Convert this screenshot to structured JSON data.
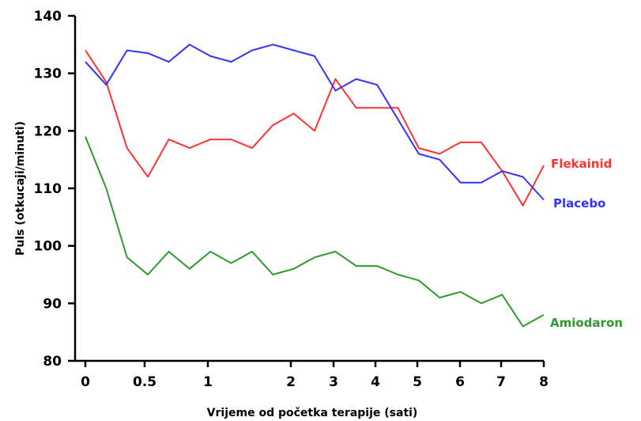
{
  "chart_data": {
    "type": "line",
    "xlabel": "Vrijeme od početka terapije (sati)",
    "ylabel": "Puls (otkucaji/minuti)",
    "ylim": [
      80,
      140
    ],
    "yticks": [
      "80",
      "90",
      "100",
      "110",
      "120",
      "130",
      "140"
    ],
    "xticks": [
      "0",
      "0.5",
      "1",
      "2",
      "3",
      "4",
      "5",
      "6",
      "7",
      "8"
    ],
    "grid": false,
    "legend": "inline labels at right end of each series",
    "series": [
      {
        "name": "Flekainid",
        "color": "#ff3333",
        "values": [
          134,
          128.5,
          117,
          112,
          118.5,
          117,
          118.5,
          118.5,
          117,
          121,
          123,
          120,
          129,
          124,
          124,
          124,
          117,
          116,
          118,
          118,
          113,
          107,
          114
        ]
      },
      {
        "name": "Placebo",
        "color": "#3333ff",
        "values": [
          132,
          128,
          134,
          133.5,
          132,
          135,
          133,
          132,
          134,
          135,
          134,
          133,
          127,
          129,
          128,
          122,
          116,
          115,
          111,
          111,
          113,
          112,
          108
        ]
      },
      {
        "name": "Amiodaron",
        "color": "#2e9a2e",
        "values": [
          119,
          110,
          98,
          95,
          99,
          96,
          99,
          97,
          99,
          95,
          96,
          98,
          99,
          96.5,
          96.5,
          95,
          94,
          91,
          92,
          90,
          91.5,
          86,
          88
        ]
      }
    ]
  }
}
